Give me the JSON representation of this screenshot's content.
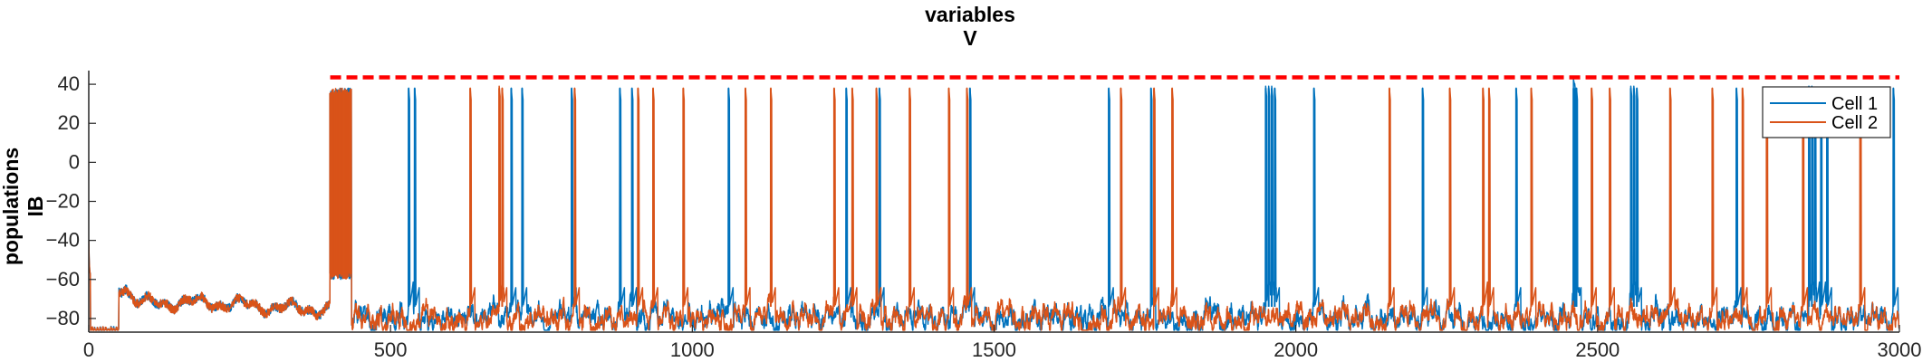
{
  "chart_data": {
    "type": "line",
    "title_lines": [
      "variables",
      "V"
    ],
    "ylabel_lines": [
      "populations",
      "IB"
    ],
    "xlabel": "",
    "xlim": [
      0,
      3000
    ],
    "ylim": [
      -87,
      47
    ],
    "xticks": [
      0,
      500,
      1000,
      1500,
      2000,
      2500,
      3000
    ],
    "yticks": [
      -80,
      -60,
      -40,
      -20,
      0,
      20,
      40
    ],
    "legend_position": "top-right",
    "grid": false,
    "threshold": {
      "y": 43.5,
      "x_start": 400,
      "x_end": 3000,
      "color": "#ff0000",
      "style": "dashed"
    },
    "series": [
      {
        "name": "Cell 1",
        "color": "#0072bd",
        "baseline_start": 50,
        "initial_burst": [
          400,
          435
        ],
        "spike_times": [
          530,
          540,
          700,
          718,
          800,
          880,
          900,
          1060,
          1255,
          1310,
          1460,
          1690,
          1760,
          1950,
          1955,
          1960,
          1965,
          2030,
          2210,
          2365,
          2460,
          2462,
          2465,
          2555,
          2560,
          2565,
          2730,
          2850,
          2855,
          2860,
          2870,
          2880,
          2990
        ]
      },
      {
        "name": "Cell 2",
        "color": "#d95319",
        "baseline_start": 50,
        "initial_burst": [
          400,
          435
        ],
        "spike_times": [
          632,
          680,
          685,
          805,
          910,
          935,
          985,
          1088,
          1130,
          1235,
          1265,
          1305,
          1360,
          1425,
          1455,
          1710,
          1765,
          1795,
          2155,
          2255,
          2310,
          2320,
          2390,
          2490,
          2520,
          2620,
          2690,
          2740,
          2780,
          2840,
          2935
        ]
      }
    ]
  }
}
